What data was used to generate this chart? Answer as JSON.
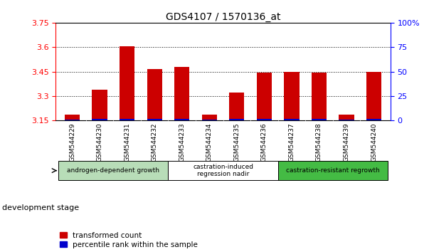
{
  "title": "GDS4107 / 1570136_at",
  "samples": [
    "GSM544229",
    "GSM544230",
    "GSM544231",
    "GSM544232",
    "GSM544233",
    "GSM544234",
    "GSM544235",
    "GSM544236",
    "GSM544237",
    "GSM544238",
    "GSM544239",
    "GSM544240"
  ],
  "red_values": [
    3.185,
    3.34,
    3.605,
    3.465,
    3.48,
    3.185,
    3.32,
    3.445,
    3.448,
    3.443,
    3.185,
    3.45
  ],
  "blue_heights": [
    0.008,
    0.01,
    0.01,
    0.01,
    0.01,
    0.008,
    0.01,
    0.01,
    0.01,
    0.01,
    0.008,
    0.01
  ],
  "ylim_left": [
    3.15,
    3.75
  ],
  "ylim_right": [
    0,
    100
  ],
  "yticks_left": [
    3.15,
    3.3,
    3.45,
    3.6,
    3.75
  ],
  "yticks_right": [
    0,
    25,
    50,
    75,
    100
  ],
  "bar_bottom": 3.15,
  "bar_color_red": "#cc0000",
  "bar_color_blue": "#0000cc",
  "bar_width": 0.55,
  "groups": [
    {
      "label": "androgen-dependent growth",
      "color": "#b8ddb8",
      "start": 0,
      "end": 3,
      "n_bars": 4
    },
    {
      "label": "castration-induced\nregression nadir",
      "color": "#ffffff",
      "start": 4,
      "end": 7,
      "n_bars": 4
    },
    {
      "label": "castration-resistant regrowth",
      "color": "#44bb44",
      "start": 8,
      "end": 11,
      "n_bars": 4
    }
  ],
  "dev_stage_label": "development stage",
  "legend_red": "transformed count",
  "legend_blue": "percentile rank within the sample",
  "tick_bg": "#d0d0d0",
  "grid_yticks": [
    3.3,
    3.45,
    3.6
  ]
}
